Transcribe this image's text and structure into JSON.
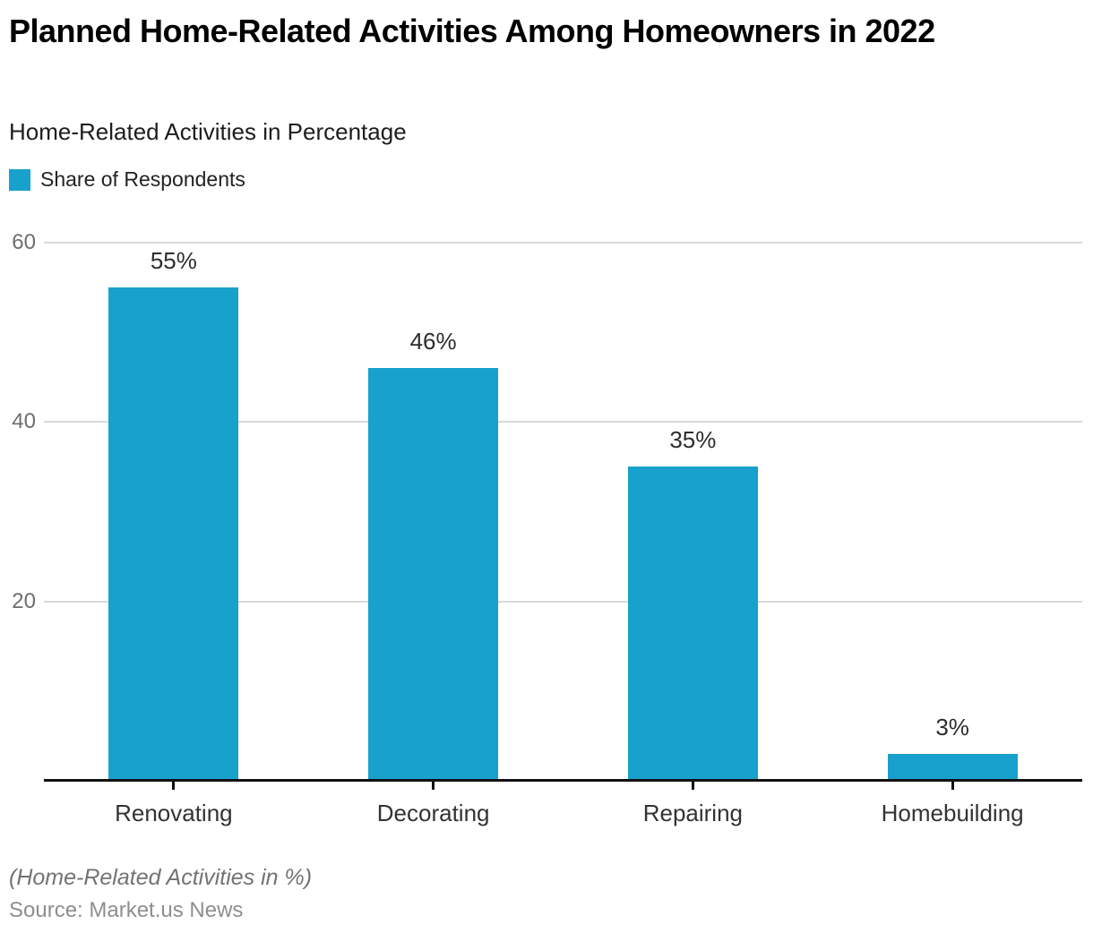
{
  "header": {
    "title": "Planned Home-Related Activities Among Homeowners in 2022",
    "subtitle": "Home-Related Activities in Percentage"
  },
  "legend": {
    "label": "Share of Respondents",
    "color": "#18a1cd"
  },
  "chart_data": {
    "type": "bar",
    "title": "Planned Home-Related Activities Among Homeowners in 2022",
    "subtitle": "Home-Related Activities in Percentage",
    "categories": [
      "Renovating",
      "Decorating",
      "Repairing",
      "Homebuilding"
    ],
    "series": [
      {
        "name": "Share of Respondents",
        "values": [
          55,
          46,
          35,
          3
        ]
      }
    ],
    "value_labels": [
      "55%",
      "46%",
      "35%",
      "3%"
    ],
    "xlabel": "",
    "ylabel": "",
    "y_ticks": [
      20,
      40,
      60
    ],
    "ylim": [
      0,
      60
    ],
    "grid": "horizontal",
    "legend_position": "top-left",
    "bar_color": "#18a1cd",
    "gridline_color": "#d9d9d9",
    "axis_color": "#111111"
  },
  "footer": {
    "note": "(Home-Related Activities in %)",
    "source": "Source: Market.us News"
  }
}
